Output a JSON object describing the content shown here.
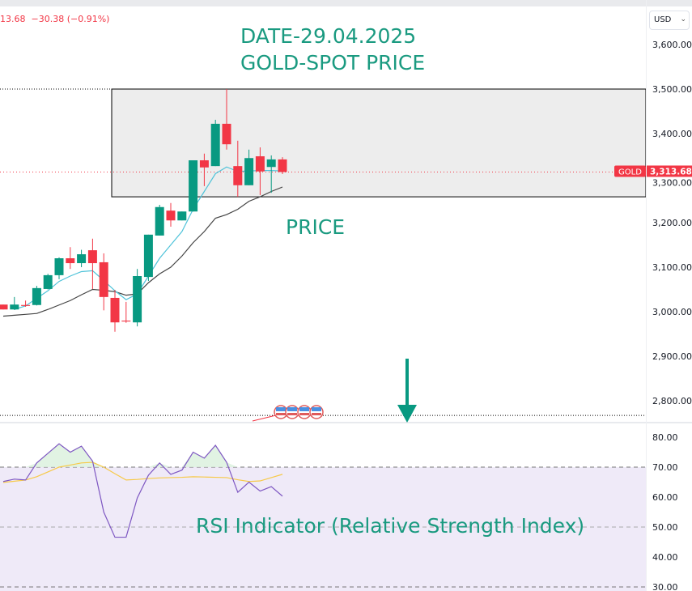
{
  "header": {
    "quote": "13.68  −30.38 (−0.91%)",
    "currency": "USD"
  },
  "annotations": {
    "title_date": "DATE-29.04.2025",
    "title_name": "GOLD-SPOT PRICE",
    "price_label": "PRICE",
    "rsi_label": "RSI Indicator (Relative Strength Index)"
  },
  "colors": {
    "up": "#089981",
    "down": "#f23645",
    "ma_fast": "#4fc3d9",
    "ma_slow": "#444444",
    "rsi": "#7e57c2",
    "rsi_ma": "#f7c948",
    "annotation": "#1a9a80"
  },
  "chart_data": [
    {
      "type": "candlestick",
      "symbol": "GOLD",
      "last_price_label": "3,313.68",
      "ylim": [
        2760,
        3640
      ],
      "yticks": [
        "3,600.00",
        "3,500.00",
        "3,400.00",
        "3,300.00",
        "3,200.00",
        "3,100.00",
        "3,000.00",
        "2,900.00",
        "2,800.00"
      ],
      "ytick_values": [
        3600,
        3500,
        3400,
        3300,
        3200,
        3100,
        3000,
        2900,
        2800
      ],
      "ohlc": [
        [
          3016,
          3016,
          3005,
          3005
        ],
        [
          3005,
          3033,
          3004,
          3016
        ],
        [
          3015,
          3025,
          3011,
          3013
        ],
        [
          3015,
          3058,
          3014,
          3053
        ],
        [
          3051,
          3085,
          3050,
          3082
        ],
        [
          3082,
          3122,
          3073,
          3120
        ],
        [
          3120,
          3145,
          3096,
          3109
        ],
        [
          3109,
          3139,
          3100,
          3129
        ],
        [
          3138,
          3164,
          3051,
          3109
        ],
        [
          3111,
          3131,
          3003,
          3033
        ],
        [
          3031,
          3049,
          2955,
          2976
        ],
        [
          2980,
          3022,
          2975,
          2978
        ],
        [
          2976,
          3096,
          2967,
          3080
        ],
        [
          3078,
          3173,
          3069,
          3173
        ],
        [
          3171,
          3240,
          3171,
          3235
        ],
        [
          3227,
          3244,
          3191,
          3205
        ],
        [
          3205,
          3225,
          3205,
          3225
        ],
        [
          3225,
          3340,
          3225,
          3340
        ],
        [
          3340,
          3355,
          3282,
          3324
        ],
        [
          3327,
          3431,
          3327,
          3422
        ],
        [
          3422,
          3500,
          3364,
          3376
        ],
        [
          3327,
          3384,
          3258,
          3284
        ],
        [
          3284,
          3364,
          3284,
          3345
        ],
        [
          3349,
          3369,
          3262,
          3315
        ],
        [
          3325,
          3351,
          3267,
          3342
        ],
        [
          3342,
          3347,
          3309,
          3313.68
        ]
      ],
      "ma_fast": [
        null,
        3005,
        3013,
        3030,
        3047,
        3068,
        3080,
        3090,
        3092,
        3070,
        3047,
        3027,
        3040,
        3080,
        3120,
        3150,
        3180,
        3230,
        3270,
        3310,
        3325,
        3315,
        3316,
        3317,
        3317,
        3316
      ],
      "ma_slow": [
        2990,
        2992,
        2994,
        2996,
        3005,
        3015,
        3025,
        3038,
        3050,
        3048,
        3045,
        3037,
        3040,
        3065,
        3085,
        3100,
        3125,
        3155,
        3180,
        3210,
        3218,
        3230,
        3248,
        3258,
        3270,
        3280
      ],
      "zone": [
        3258,
        3500
      ],
      "horizontal_levels": [
        3500,
        2767
      ]
    },
    {
      "type": "line",
      "name": "RSI",
      "ylim": [
        30,
        82
      ],
      "yticks": [
        "80.00",
        "70.00",
        "60.00",
        "50.00",
        "40.00",
        "30.00"
      ],
      "ytick_values": [
        80,
        70,
        60,
        50,
        40,
        30
      ],
      "bands": [
        30,
        50,
        70
      ],
      "rsi": [
        65.2,
        66,
        65.7,
        71.4,
        74.6,
        77.8,
        75,
        77,
        72,
        55,
        46.6,
        46.6,
        59.7,
        67.3,
        71.4,
        67.6,
        69,
        75,
        73,
        77.3,
        71.6,
        61.6,
        65,
        62,
        63.5,
        60.3
      ],
      "rsi_ma": [
        64.9,
        65.3,
        65.7,
        66.8,
        68.4,
        70,
        70.7,
        71.4,
        71.6,
        70,
        67.8,
        65.7,
        65.9,
        66.2,
        66.4,
        66.5,
        66.6,
        66.8,
        66.7,
        66.6,
        66.5,
        65.8,
        65.2,
        65.4,
        66.5,
        67.6
      ]
    }
  ]
}
